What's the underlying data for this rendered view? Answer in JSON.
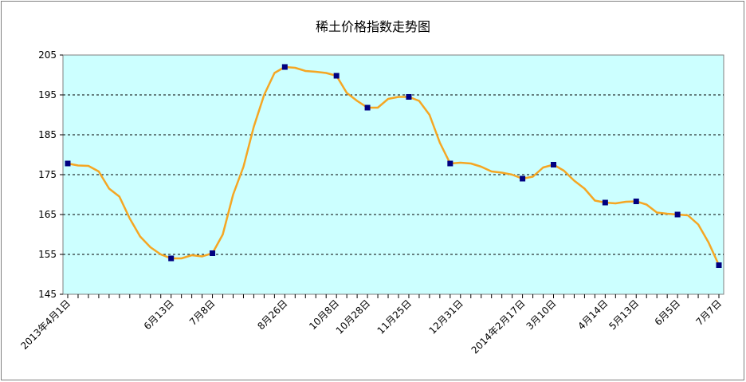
{
  "chart_data": {
    "type": "line",
    "title": "稀土价格指数走势图",
    "xlabel": "",
    "ylabel": "",
    "ylim": [
      145,
      205
    ],
    "yticks": [
      145,
      155,
      165,
      175,
      185,
      195,
      205
    ],
    "grid": true,
    "plot_background": "#ccffff",
    "line_color": "#f5a623",
    "marker_color": "#000080",
    "x_tick_labels": [
      {
        "index": 0,
        "label": "2013年4月1日"
      },
      {
        "index": 10,
        "label": "6月13日"
      },
      {
        "index": 14,
        "label": "7月8日"
      },
      {
        "index": 21,
        "label": "8月26日"
      },
      {
        "index": 26,
        "label": "10月8日"
      },
      {
        "index": 29,
        "label": "10月28日"
      },
      {
        "index": 33,
        "label": "11月25日"
      },
      {
        "index": 38,
        "label": "12月31日"
      },
      {
        "index": 44,
        "label": "2014年2月17日"
      },
      {
        "index": 47,
        "label": "3月10日"
      },
      {
        "index": 52,
        "label": "4月14日"
      },
      {
        "index": 55,
        "label": "5月13日"
      },
      {
        "index": 59,
        "label": "6月5日"
      },
      {
        "index": 63,
        "label": "7月7日"
      }
    ],
    "series": [
      {
        "values": [
          177.8,
          177.3,
          177.2,
          175.8,
          171.5,
          169.5,
          164.0,
          159.5,
          156.8,
          155.0,
          154.0,
          154.0,
          154.8,
          154.5,
          155.3,
          160.0,
          170.0,
          177.0,
          187.0,
          195.0,
          200.5,
          202.0,
          201.8,
          201.0,
          200.8,
          200.5,
          199.8,
          195.5,
          193.5,
          191.8,
          191.8,
          194.0,
          194.5,
          194.5,
          193.5,
          190.0,
          183.0,
          177.8,
          178.0,
          177.8,
          177.0,
          175.8,
          175.5,
          175.0,
          174.0,
          174.5,
          176.8,
          177.5,
          176.0,
          173.5,
          171.5,
          168.5,
          168.0,
          167.8,
          168.2,
          168.3,
          167.5,
          165.5,
          165.2,
          165.0,
          164.8,
          162.5,
          158.0,
          152.3
        ],
        "marker_indices": [
          0,
          10,
          14,
          21,
          26,
          29,
          33,
          37,
          44,
          47,
          52,
          55,
          59,
          63
        ]
      }
    ]
  }
}
